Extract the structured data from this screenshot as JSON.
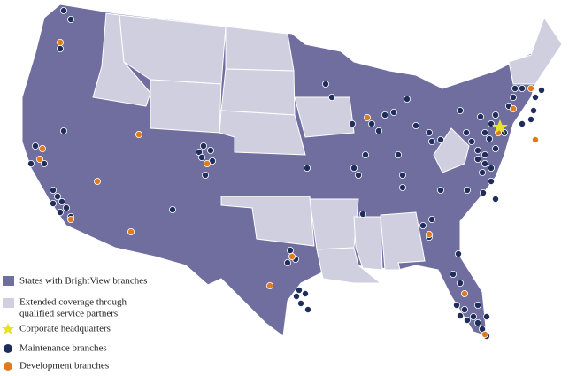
{
  "legend": {
    "states": "States with BrightView branches",
    "extended": [
      "Extended coverage through",
      "qualified service partners"
    ],
    "hq": "Corporate headquarters",
    "maintenance": "Maintenance branches",
    "development": "Development branches"
  }
}
